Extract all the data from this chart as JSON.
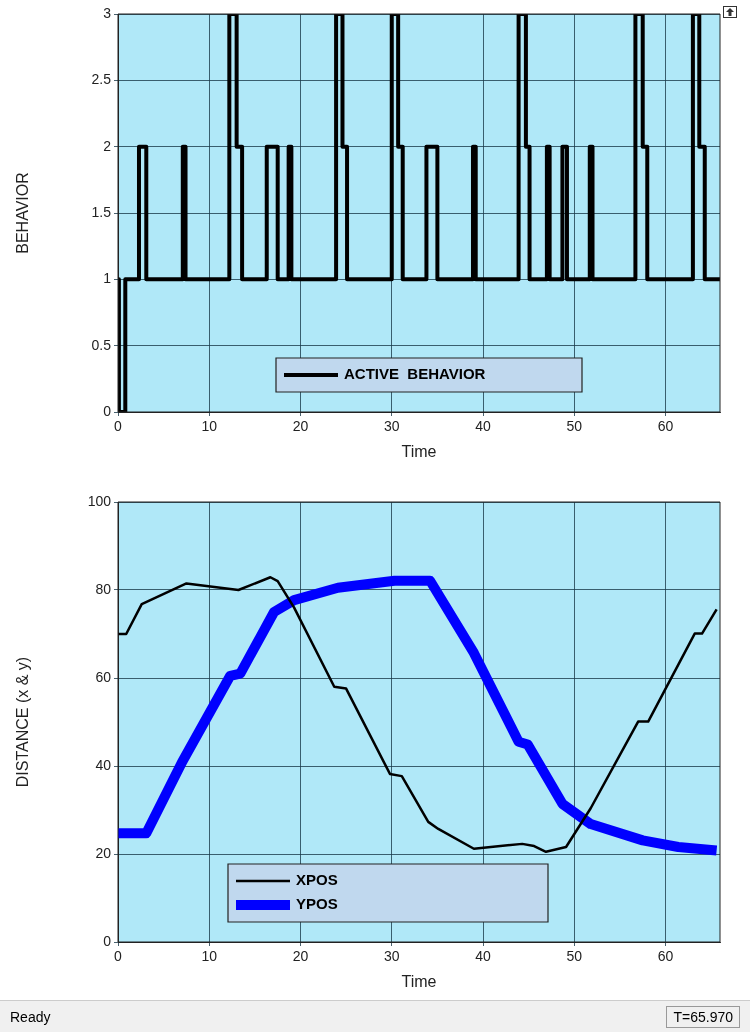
{
  "chart_data": [
    {
      "type": "step",
      "xlabel": "Time",
      "ylabel": "BEHAVIOR",
      "xlim": [
        0,
        65.97
      ],
      "xticks": [
        0,
        10,
        20,
        30,
        40,
        50,
        60
      ],
      "ylim": [
        0,
        3
      ],
      "yticks": [
        0,
        0.5,
        1,
        1.5,
        2,
        2.5,
        3
      ],
      "grid": true,
      "legend": "bottom",
      "series": [
        {
          "name": "ACTIVE  BEHAVIOR",
          "color": "#000000",
          "x": [
            0,
            0.1,
            0.8,
            2.3,
            3.1,
            7.1,
            7.4,
            12.2,
            13.0,
            13.6,
            16.3,
            17.5,
            18.7,
            19.0,
            23.9,
            24.6,
            25.1,
            30.0,
            30.7,
            31.2,
            33.8,
            35.0,
            38.9,
            39.2,
            43.9,
            44.7,
            45.1,
            47.0,
            47.3,
            48.7,
            49.2,
            51.7,
            52.0,
            56.7,
            57.5,
            58.0,
            63.0,
            63.7,
            64.3,
            65.97
          ],
          "values": [
            1,
            0,
            1,
            2,
            1,
            2,
            1,
            3,
            2,
            1,
            2,
            1,
            2,
            1,
            3,
            2,
            1,
            3,
            2,
            1,
            2,
            1,
            2,
            1,
            3,
            2,
            1,
            2,
            1,
            2,
            1,
            2,
            1,
            3,
            2,
            1,
            3,
            2,
            1,
            1
          ]
        }
      ]
    },
    {
      "type": "line",
      "xlabel": "Time",
      "ylabel": "DISTANCE (x & y)",
      "xlim": [
        0,
        65.97
      ],
      "xticks": [
        0,
        10,
        20,
        30,
        40,
        50,
        60
      ],
      "ylim": [
        0,
        100
      ],
      "yticks": [
        0,
        20,
        40,
        60,
        80,
        100
      ],
      "grid": true,
      "legend": "bottom left",
      "annotations": [
        "Ready",
        "T=65.970"
      ],
      "series": [
        {
          "name": "XPOS",
          "color": "#000000",
          "x": [
            0,
            0.9,
            2.6,
            7.5,
            13.2,
            16.7,
            17.5,
            19.3,
            23.7,
            25,
            29.8,
            31.1,
            34,
            35.1,
            39,
            44.3,
            45.6,
            46.9,
            49.1,
            51.8,
            57,
            58.1,
            63.2,
            64,
            65.6
          ],
          "values": [
            70,
            70,
            76.8,
            81.5,
            80,
            82.9,
            82,
            76,
            58,
            57.6,
            38.2,
            37.7,
            27.3,
            25.7,
            21.2,
            22.3,
            21.8,
            20.5,
            21.6,
            30.4,
            50.1,
            50.1,
            70.1,
            70.1,
            75.6
          ]
        },
        {
          "name": "YPOS",
          "color": "#0000ff",
          "x": [
            0,
            3.1,
            7,
            12.3,
            13.4,
            17.1,
            19.3,
            24.1,
            30.3,
            34.2,
            39,
            43.9,
            44.9,
            48.7,
            51.8,
            57.5,
            61.4,
            65.6
          ],
          "values": [
            24.7,
            24.7,
            40.8,
            60.5,
            61,
            75,
            77.7,
            80.5,
            82.1,
            82.1,
            65.7,
            45.5,
            44.9,
            31.4,
            26.8,
            23.1,
            21.6,
            20.8
          ]
        }
      ]
    }
  ]
}
